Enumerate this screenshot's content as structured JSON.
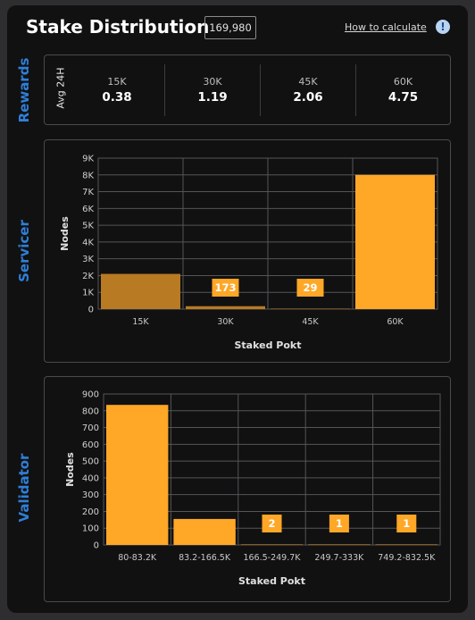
{
  "header": {
    "title": "Stake Distribution",
    "total": "169,980",
    "how_link": "How to calculate",
    "info_icon": "info-circle-icon"
  },
  "sections": {
    "rewards": "Rewards",
    "servicer": "Servicer",
    "validator": "Validator"
  },
  "rewards": {
    "row_label": "Avg 24H",
    "items": [
      {
        "tier": "15K",
        "value": "0.38"
      },
      {
        "tier": "30K",
        "value": "1.19"
      },
      {
        "tier": "45K",
        "value": "2.06"
      },
      {
        "tier": "60K",
        "value": "4.75"
      }
    ]
  },
  "colors": {
    "accent": "#FFA726",
    "accent_muted": "#B87A22",
    "section_label": "#2F7FD6",
    "background": "#111112"
  },
  "chart_data": [
    {
      "type": "bar",
      "categories": [
        "15K",
        "30K",
        "45K",
        "60K"
      ],
      "values": [
        2100,
        173,
        29,
        8000
      ],
      "data_labels": [
        "",
        "173",
        "29",
        ""
      ],
      "highlighted": [
        false,
        false,
        false,
        true
      ],
      "xlabel": "Staked Pokt",
      "ylabel": "Nodes",
      "ylim": [
        0,
        9000
      ],
      "yticks": [
        0,
        1000,
        2000,
        3000,
        4000,
        5000,
        6000,
        7000,
        8000,
        9000
      ],
      "ytick_labels": [
        "0",
        "1K",
        "2K",
        "3K",
        "4K",
        "5K",
        "6K",
        "7K",
        "8K",
        "9K"
      ],
      "grid": true
    },
    {
      "type": "bar",
      "categories": [
        "80-83.2K",
        "83.2-166.5K",
        "166.5-249.7K",
        "249.7-333K",
        "749.2-832.5K"
      ],
      "values": [
        835,
        155,
        2,
        1,
        1
      ],
      "data_labels": [
        "",
        "",
        "2",
        "1",
        "1"
      ],
      "highlighted": [
        true,
        true,
        true,
        true,
        true
      ],
      "xlabel": "Staked Pokt",
      "ylabel": "Nodes",
      "ylim": [
        0,
        900
      ],
      "yticks": [
        0,
        100,
        200,
        300,
        400,
        500,
        600,
        700,
        800,
        900
      ],
      "ytick_labels": [
        "0",
        "100",
        "200",
        "300",
        "400",
        "500",
        "600",
        "700",
        "800",
        "900"
      ],
      "grid": true
    }
  ]
}
